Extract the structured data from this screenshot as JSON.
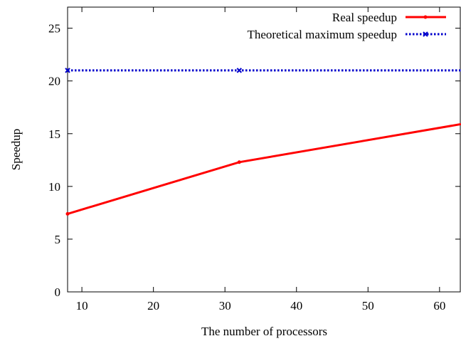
{
  "chart_data": {
    "type": "line",
    "title": "",
    "xlabel": "The number of processors",
    "ylabel": "Speedup",
    "xlim": [
      8,
      63
    ],
    "ylim": [
      0,
      27
    ],
    "x_ticks": [
      10,
      20,
      30,
      40,
      50,
      60
    ],
    "y_ticks": [
      0,
      5,
      10,
      15,
      20,
      25
    ],
    "grid": false,
    "legend_position": "top-right",
    "series": [
      {
        "name": "Real speedup",
        "color": "#ff0000",
        "line_style": "solid",
        "marker": "dot",
        "x": [
          8,
          32,
          63
        ],
        "y": [
          7.4,
          12.3,
          15.9
        ]
      },
      {
        "name": "Theoretical maximum speedup",
        "color": "#0000cc",
        "line_style": "dotted",
        "marker": "x",
        "x": [
          8,
          32,
          63
        ],
        "y": [
          21,
          21,
          21
        ]
      }
    ]
  }
}
